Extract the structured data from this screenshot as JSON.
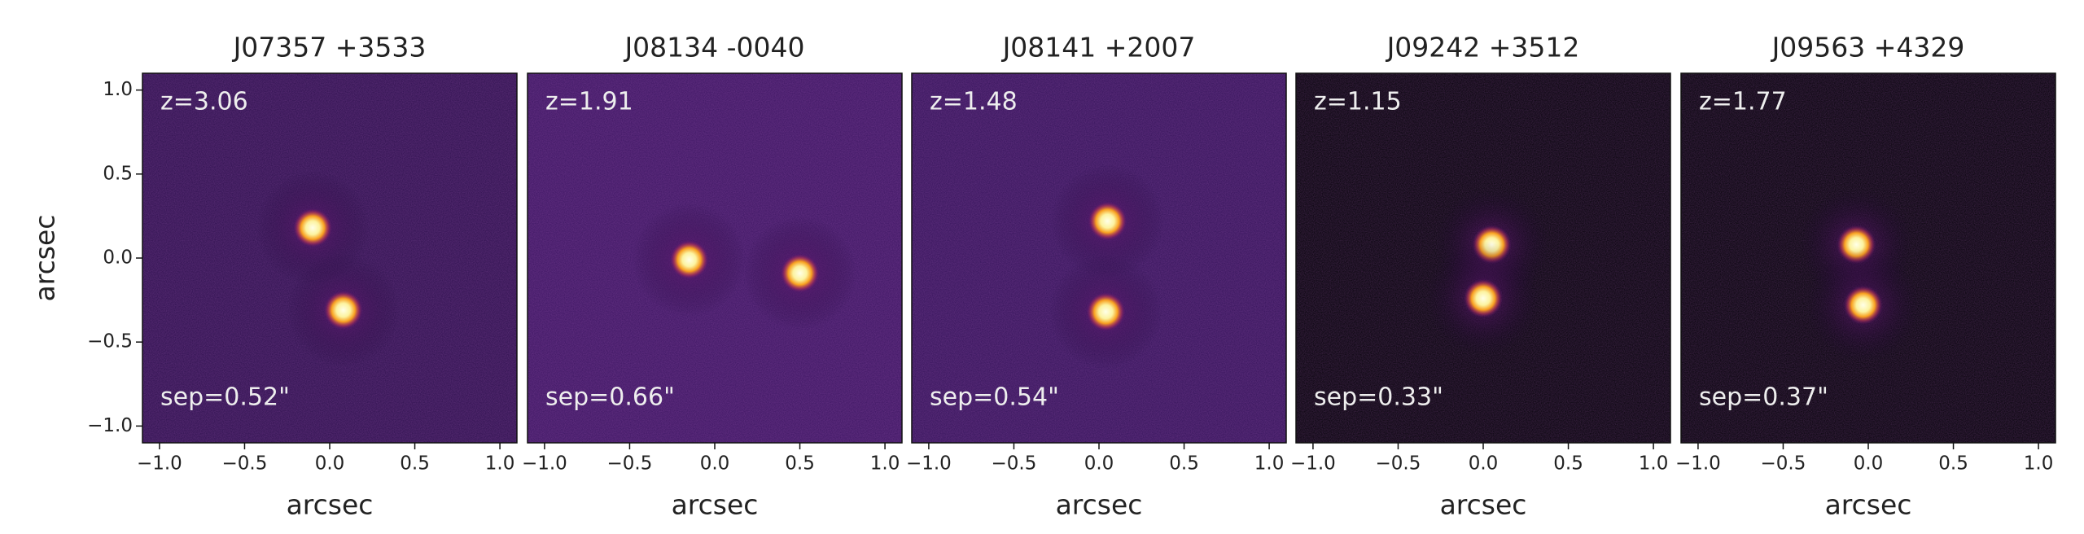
{
  "chart_data": [
    {
      "type": "image",
      "title": "J07357 +3533",
      "annotations": [
        "z=3.06",
        "sep=0.52\""
      ],
      "background": "#2b0f4c",
      "x": [
        -0.1,
        0.08
      ],
      "values": [
        0.18,
        -0.31
      ],
      "xlim": [
        -1.1,
        1.1
      ],
      "ylim": [
        -1.1,
        1.1
      ],
      "xticks": [
        {
          "value": -1,
          "label": "−1.0"
        },
        {
          "value": -0.5,
          "label": "−0.5"
        },
        {
          "value": 0,
          "label": "0.0"
        },
        0.5,
        {
          "value": 1,
          "label": "1.0"
        }
      ],
      "yticks": [
        {
          "value": -1,
          "label": "−1.0"
        },
        {
          "value": -0.5,
          "label": "−0.5"
        },
        {
          "value": 0,
          "label": "0.0"
        },
        0.5,
        {
          "value": 1,
          "label": "1.0"
        }
      ],
      "xlabel": "arcsec",
      "ylabel": "arcsec"
    },
    {
      "type": "image",
      "title": "J08134 -0040",
      "annotations": [
        "z=1.91",
        "sep=0.66\""
      ],
      "background": "#3a1460",
      "x": [
        -0.15,
        0.5
      ],
      "values": [
        -0.01,
        -0.09
      ],
      "xlim": [
        -1.1,
        1.1
      ],
      "ylim": [
        -1.1,
        1.1
      ],
      "xticks": [
        {
          "value": -1,
          "label": "−1.0"
        },
        {
          "value": -0.5,
          "label": "−0.5"
        },
        {
          "value": 0,
          "label": "0.0"
        },
        0.5,
        {
          "value": 1,
          "label": "1.0"
        }
      ],
      "xlabel": "arcsec"
    },
    {
      "type": "image",
      "title": "J08141 +2007",
      "annotations": [
        "z=1.48",
        "sep=0.54\""
      ],
      "background": "#321258",
      "x": [
        0.05,
        0.04
      ],
      "values": [
        0.22,
        -0.32
      ],
      "xlim": [
        -1.1,
        1.1
      ],
      "ylim": [
        -1.1,
        1.1
      ],
      "xticks": [
        {
          "value": -1,
          "label": "−1.0"
        },
        {
          "value": -0.5,
          "label": "−0.5"
        },
        {
          "value": 0,
          "label": "0.0"
        },
        0.5,
        {
          "value": 1,
          "label": "1.0"
        }
      ],
      "xlabel": "arcsec"
    },
    {
      "type": "image",
      "title": "J09242 +3512",
      "annotations": [
        "z=1.15",
        "sep=0.33\""
      ],
      "background": "#000004",
      "x": [
        0.05,
        0.0
      ],
      "values": [
        0.08,
        -0.24
      ],
      "xlim": [
        -1.1,
        1.1
      ],
      "ylim": [
        -1.1,
        1.1
      ],
      "xticks": [
        {
          "value": -1,
          "label": "−1.0"
        },
        {
          "value": -0.5,
          "label": "−0.5"
        },
        {
          "value": 0,
          "label": "0.0"
        },
        0.5,
        {
          "value": 1,
          "label": "1.0"
        }
      ],
      "xlabel": "arcsec"
    },
    {
      "type": "image",
      "title": "J09563 +4329",
      "annotations": [
        "z=1.77",
        "sep=0.37\""
      ],
      "background": "#000004",
      "x": [
        -0.07,
        -0.03
      ],
      "values": [
        0.08,
        -0.28
      ],
      "xlim": [
        -1.1,
        1.1
      ],
      "ylim": [
        -1.1,
        1.1
      ],
      "xticks": [
        {
          "value": -1,
          "label": "−1.0"
        },
        {
          "value": -0.5,
          "label": "−0.5"
        },
        {
          "value": 0,
          "label": "0.0"
        },
        0.5,
        {
          "value": 1,
          "label": "1.0"
        }
      ],
      "xlabel": "arcsec"
    }
  ]
}
